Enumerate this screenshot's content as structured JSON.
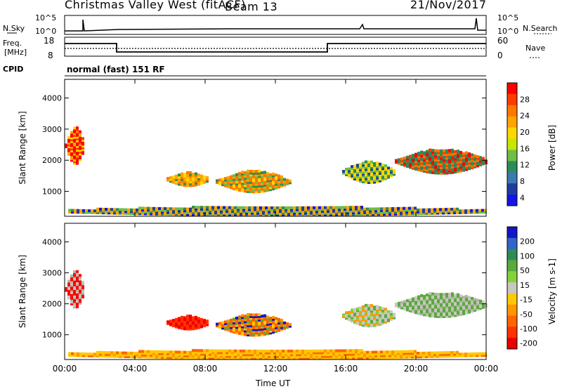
{
  "header": {
    "station": "Christmas Valley West (fitACF)",
    "beam": "Beam 13",
    "date": "21/Nov/2017"
  },
  "panels": {
    "nsky_label": "N.Sky",
    "nsearch_label": "N.Search",
    "freq_label_line1": "Freq.",
    "freq_label_line2": "[MHz]",
    "nave_label": "Nave",
    "cpid_label": "CPID",
    "cpid_value": "normal (fast) 151 RF",
    "nsky_ticks": [
      "10^5",
      "10^0"
    ],
    "nsearch_ticks": [
      "10^5",
      "10^0"
    ],
    "freq_ticks": [
      "18",
      "8"
    ],
    "nave_ticks": [
      "60",
      "0"
    ]
  },
  "chart_data": [
    {
      "type": "heatmap",
      "ylabel": "Slant Range [km]",
      "ylim": [
        200,
        4600
      ],
      "yticks": [
        "1000",
        "2000",
        "3000",
        "4000"
      ],
      "colorbar_label": "Power [dB]",
      "colorbar_ticks": [
        "28",
        "24",
        "20",
        "16",
        "12",
        "8",
        "4"
      ],
      "colorbar_colors": [
        "#ff0000",
        "#ff3c00",
        "#ff7800",
        "#ffa500",
        "#ffd700",
        "#c8e600",
        "#6ebe46",
        "#2e8b57",
        "#3a7ab0",
        "#1e3ca0",
        "#1414e6"
      ]
    },
    {
      "type": "heatmap",
      "ylabel": "Slant Range [km]",
      "ylim": [
        200,
        4600
      ],
      "yticks": [
        "1000",
        "2000",
        "3000",
        "4000"
      ],
      "colorbar_label": "Velocity [m s-1]",
      "colorbar_ticks": [
        "200",
        "100",
        "50",
        "15",
        "-15",
        "-50",
        "-100",
        "-200"
      ],
      "colorbar_colors": [
        "#1414c8",
        "#3264c8",
        "#2e8b57",
        "#5aaa3c",
        "#82d23c",
        "#c8c8c0",
        "#ffc800",
        "#ff9600",
        "#ff6400",
        "#ff3200",
        "#e60000"
      ]
    }
  ],
  "xaxis": {
    "label": "Time UT",
    "ticks": [
      "00:00",
      "04:00",
      "08:00",
      "12:00",
      "16:00",
      "20:00",
      "00:00"
    ]
  }
}
